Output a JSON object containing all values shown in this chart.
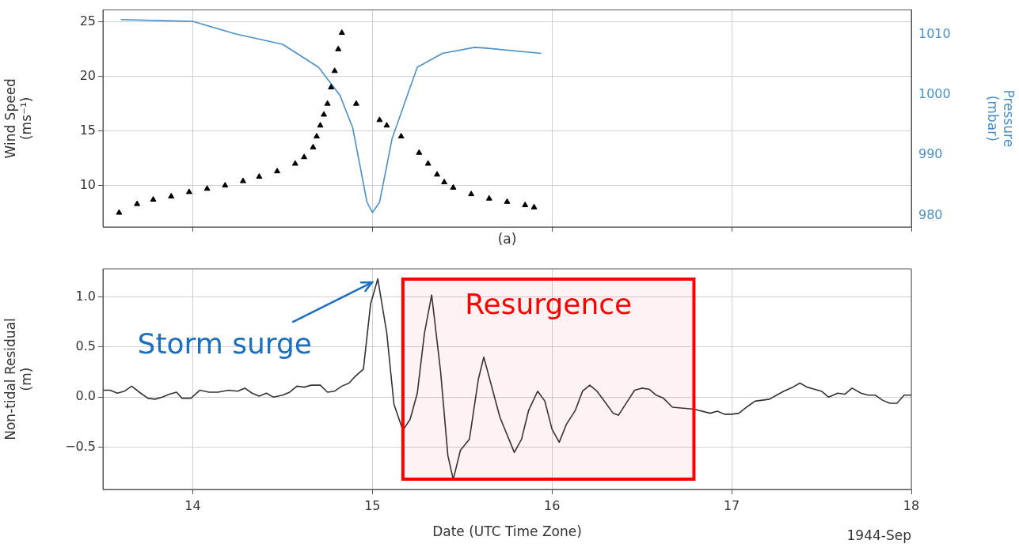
{
  "chart_data": [
    {
      "type": "line",
      "xlabel": "(a)",
      "ylabel": "Wind Speed (ms⁻¹)",
      "y2label": "Pressure (mbar)",
      "xlim": [
        13.5,
        18
      ],
      "xticks": [
        14,
        15,
        16,
        17,
        18
      ],
      "ylim": [
        6.2,
        26.1
      ],
      "yticks": [
        10,
        15,
        20,
        25
      ],
      "y2lim": [
        978.1,
        1014.1
      ],
      "y2ticks": [
        980,
        990,
        1000,
        1010
      ],
      "tick_labels": "y",
      "grid": true,
      "series": [
        {
          "type": "scatter",
          "marker": "triangle",
          "color": "#000000",
          "x": [
            13.59,
            13.69,
            13.78,
            13.88,
            13.98,
            14.08,
            14.18,
            14.28,
            14.37,
            14.47,
            14.57,
            14.62,
            14.67,
            14.69,
            14.71,
            14.73,
            14.75,
            14.77,
            14.79,
            14.81,
            14.83,
            14.91,
            15.04,
            15.08,
            15.16,
            15.26,
            15.31,
            15.36,
            15.4,
            15.45,
            15.55,
            15.65,
            15.75,
            15.85,
            15.9
          ],
          "values": [
            7.5,
            8.3,
            8.7,
            9.0,
            9.4,
            9.7,
            10.0,
            10.4,
            10.8,
            11.3,
            12.0,
            12.6,
            13.5,
            14.5,
            15.5,
            16.5,
            17.5,
            19.0,
            20.5,
            22.5,
            24.0,
            17.5,
            16.0,
            15.5,
            14.5,
            13.0,
            12.0,
            11.0,
            10.3,
            9.8,
            9.2,
            8.8,
            8.5,
            8.2,
            8.0
          ]
        },
        {
          "type": "line",
          "marker": "none",
          "axis": "y2",
          "color": "#4a90c8",
          "x": [
            13.6,
            14.0,
            14.24,
            14.5,
            14.7,
            14.82,
            14.89,
            14.97,
            15.0,
            15.04,
            15.11,
            15.25,
            15.39,
            15.57,
            15.62,
            15.94
          ],
          "values": [
            1012.5,
            1012.2,
            1010.1,
            1008.4,
            1004.6,
            999.9,
            994.6,
            982.2,
            980.5,
            982.2,
            992.8,
            1004.6,
            1006.9,
            1007.9,
            1007.8,
            1006.9
          ]
        }
      ]
    },
    {
      "type": "line",
      "xlabel": "Date (UTC Time Zone)",
      "ylabel": "Non-tidal Residual (m)",
      "xlim": [
        13.5,
        18
      ],
      "xticks": [
        14,
        15,
        16,
        17,
        18
      ],
      "ylim": [
        -0.92,
        1.28
      ],
      "yticks": [
        {
          "value": -0.5,
          "label": "−0.5"
        },
        {
          "value": 0,
          "label": "0.0"
        },
        {
          "value": 0.5,
          "label": "0.5"
        },
        {
          "value": 1,
          "label": "1.0"
        }
      ],
      "grid": true,
      "annotations": [
        "1944-Sep",
        "Storm surge"
      ],
      "bands": [
        {
          "axis": "x",
          "from": 15.17,
          "to": 16.79,
          "label": "Resurgence",
          "color": "#ff0000"
        }
      ],
      "series": [
        {
          "marker": "none",
          "color": "#333333",
          "x": [
            13.5,
            13.54,
            13.58,
            13.62,
            13.66,
            13.71,
            13.75,
            13.79,
            13.83,
            13.87,
            13.91,
            13.94,
            13.99,
            14.04,
            14.09,
            14.14,
            14.2,
            14.25,
            14.29,
            14.33,
            14.37,
            14.41,
            14.45,
            14.5,
            14.54,
            14.58,
            14.62,
            14.66,
            14.71,
            14.75,
            14.79,
            14.83,
            14.87,
            14.9,
            14.95,
            14.99,
            15.03,
            15.08,
            15.12,
            15.17,
            15.21,
            15.25,
            15.29,
            15.33,
            15.38,
            15.42,
            15.45,
            15.49,
            15.54,
            15.59,
            15.62,
            15.71,
            15.79,
            15.83,
            15.87,
            15.92,
            15.96,
            16.0,
            16.04,
            16.08,
            16.13,
            16.17,
            16.21,
            16.25,
            16.3,
            16.34,
            16.37,
            16.42,
            16.46,
            16.5,
            16.54,
            16.58,
            16.62,
            16.67,
            16.79,
            16.88,
            16.92,
            16.96,
            17.0,
            17.04,
            17.09,
            17.13,
            17.21,
            17.25,
            17.29,
            17.34,
            17.38,
            17.42,
            17.46,
            17.5,
            17.54,
            17.59,
            17.63,
            17.67,
            17.72,
            17.76,
            17.8,
            17.84,
            17.88,
            17.92,
            17.96,
            18.0
          ],
          "values": [
            0.07,
            0.07,
            0.04,
            0.06,
            0.11,
            0.04,
            -0.01,
            -0.02,
            0.0,
            0.03,
            0.05,
            -0.01,
            -0.01,
            0.07,
            0.05,
            0.05,
            0.07,
            0.06,
            0.09,
            0.04,
            0.01,
            0.04,
            0.0,
            0.02,
            0.05,
            0.11,
            0.1,
            0.12,
            0.12,
            0.05,
            0.06,
            0.11,
            0.14,
            0.2,
            0.28,
            0.93,
            1.18,
            0.64,
            -0.07,
            -0.33,
            -0.22,
            0.04,
            0.64,
            1.02,
            0.25,
            -0.58,
            -0.82,
            -0.53,
            -0.42,
            0.18,
            0.4,
            -0.2,
            -0.55,
            -0.42,
            -0.13,
            0.06,
            -0.04,
            -0.32,
            -0.45,
            -0.27,
            -0.13,
            0.06,
            0.12,
            0.06,
            -0.06,
            -0.16,
            -0.18,
            -0.04,
            0.07,
            0.09,
            0.08,
            0.02,
            -0.01,
            -0.1,
            -0.12,
            -0.16,
            -0.14,
            -0.17,
            -0.17,
            -0.16,
            -0.09,
            -0.04,
            -0.02,
            0.02,
            0.06,
            0.1,
            0.14,
            0.1,
            0.08,
            0.06,
            0.0,
            0.04,
            0.03,
            0.09,
            0.04,
            0.02,
            0.02,
            -0.03,
            -0.06,
            -0.06,
            0.02,
            0.02
          ]
        }
      ]
    }
  ]
}
